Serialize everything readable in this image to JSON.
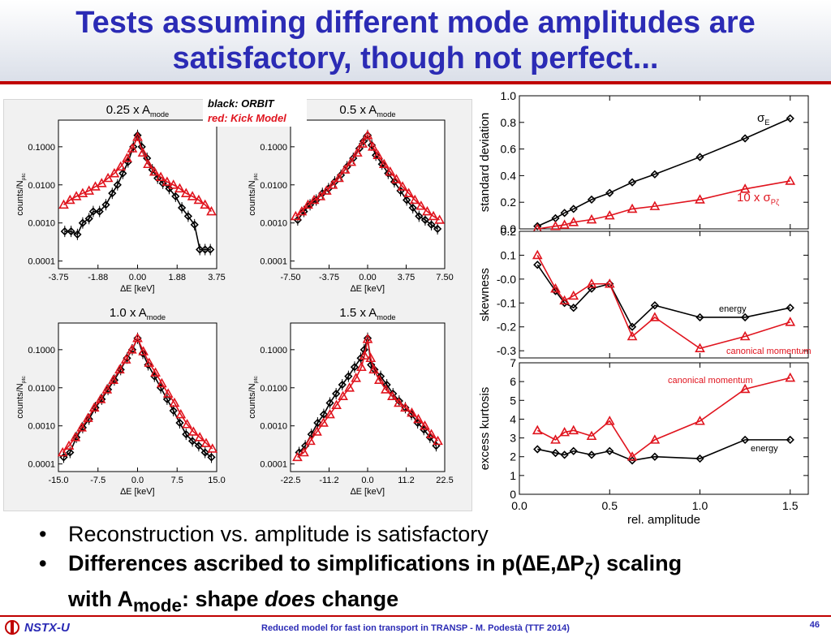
{
  "slide": {
    "title_line1": "Tests assuming different mode amplitudes are",
    "title_line2": "satisfactory, though not perfect...",
    "bullets": [
      "Reconstruction vs. amplitude is satisfactory",
      {
        "before": "Differences ascribed to simplifications in p(",
        "delta1": "∆",
        "e": "E,",
        "delta2": "∆",
        "p": "P",
        "zeta": "ζ",
        "after": ") scaling",
        "line2_a": "with A",
        "line2_sub": "mode",
        "line2_b": ": shape ",
        "line2_em": "does",
        "line2_c": " change"
      }
    ],
    "footer": "Reduced model for fast ion transport in TRANSP - M. Podestà (TTF 2014)",
    "page_number": "46",
    "logo_text": "NSTX-U"
  },
  "legend": {
    "black": "black: ORBIT",
    "red": "red: Kick Model"
  },
  "colors": {
    "title": "#2b2bb5",
    "accent": "#c00000",
    "orbit": "#000000",
    "kick": "#e0141e"
  },
  "chart_data": [
    {
      "type": "line",
      "title": "0.25 x A",
      "title_sub": "mode",
      "xlabel": "∆E [keV]",
      "ylabel": "counts/N",
      "ylabel_sub": "ptc",
      "xlim": [
        -3.75,
        3.75
      ],
      "ylim_log10": [
        -4.2,
        -0.3
      ],
      "yscale": "log",
      "xticks": [
        "-3.75",
        "-1.88",
        "0.00",
        "1.88",
        "3.75"
      ],
      "yticks": [
        {
          "v": 0.1,
          "label": "0.1000"
        },
        {
          "v": 0.01,
          "label": "0.0100"
        },
        {
          "v": 0.001,
          "label": "0.0010"
        },
        {
          "v": 0.0001,
          "label": "0.0001"
        }
      ],
      "series": [
        {
          "color": "#000000",
          "marker": "diamond",
          "x": [
            -3.45,
            -3.15,
            -2.85,
            -2.6,
            -2.3,
            -2.1,
            -1.8,
            -1.5,
            -1.2,
            -0.95,
            -0.7,
            -0.45,
            -0.2,
            0.0,
            0.2,
            0.45,
            0.7,
            0.95,
            1.2,
            1.5,
            1.8,
            2.1,
            2.4,
            2.7,
            2.95,
            3.2,
            3.45
          ],
          "y": [
            0.0006,
            0.0006,
            0.0005,
            0.001,
            0.0013,
            0.002,
            0.002,
            0.003,
            0.006,
            0.01,
            0.02,
            0.04,
            0.1,
            0.2,
            0.1,
            0.05,
            0.025,
            0.015,
            0.011,
            0.008,
            0.005,
            0.0025,
            0.0015,
            0.0009,
            0.0002,
            0.0002,
            0.0002
          ]
        },
        {
          "color": "#e0141e",
          "marker": "triangle",
          "x": [
            -3.5,
            -3.2,
            -2.9,
            -2.6,
            -2.3,
            -2.0,
            -1.7,
            -1.4,
            -1.1,
            -0.8,
            -0.5,
            -0.25,
            0.0,
            0.25,
            0.5,
            0.8,
            1.1,
            1.4,
            1.7,
            2.0,
            2.3,
            2.6,
            2.9,
            3.2,
            3.5
          ],
          "y": [
            0.003,
            0.004,
            0.005,
            0.006,
            0.007,
            0.009,
            0.011,
            0.015,
            0.02,
            0.03,
            0.05,
            0.09,
            0.18,
            0.07,
            0.035,
            0.022,
            0.016,
            0.012,
            0.01,
            0.008,
            0.006,
            0.005,
            0.004,
            0.003,
            0.002
          ]
        }
      ]
    },
    {
      "type": "line",
      "title": "0.5 x A",
      "title_sub": "mode",
      "xlabel": "∆E [keV]",
      "ylabel": "counts/N",
      "ylabel_sub": "ptc",
      "xlim": [
        -7.5,
        7.5
      ],
      "ylim_log10": [
        -4.2,
        -0.3
      ],
      "yscale": "log",
      "xticks": [
        "-7.50",
        "-3.75",
        "0.00",
        "3.75",
        "7.50"
      ],
      "yticks": [
        {
          "v": 0.1,
          "label": "0.1000"
        },
        {
          "v": 0.01,
          "label": "0.0100"
        },
        {
          "v": 0.001,
          "label": "0.0010"
        },
        {
          "v": 0.0001,
          "label": "0.0001"
        }
      ],
      "series": [
        {
          "color": "#000000",
          "marker": "diamond",
          "x": [
            -6.8,
            -6.2,
            -5.6,
            -5.0,
            -4.4,
            -3.8,
            -3.2,
            -2.6,
            -2.0,
            -1.4,
            -0.8,
            -0.4,
            0.0,
            0.4,
            0.8,
            1.4,
            2.0,
            2.6,
            3.2,
            3.8,
            4.4,
            5.0,
            5.6,
            6.2,
            6.8
          ],
          "y": [
            0.0012,
            0.002,
            0.003,
            0.004,
            0.006,
            0.008,
            0.012,
            0.018,
            0.03,
            0.05,
            0.09,
            0.14,
            0.2,
            0.11,
            0.06,
            0.035,
            0.02,
            0.012,
            0.007,
            0.004,
            0.0025,
            0.0015,
            0.0012,
            0.0009,
            0.0007
          ]
        },
        {
          "color": "#e0141e",
          "marker": "triangle",
          "x": [
            -7.0,
            -6.4,
            -5.8,
            -5.2,
            -4.6,
            -4.0,
            -3.4,
            -2.8,
            -2.2,
            -1.6,
            -1.0,
            -0.5,
            0.0,
            0.5,
            1.0,
            1.6,
            2.2,
            2.8,
            3.4,
            4.0,
            4.6,
            5.2,
            5.8,
            6.4,
            7.0
          ],
          "y": [
            0.0015,
            0.002,
            0.003,
            0.004,
            0.005,
            0.007,
            0.01,
            0.015,
            0.025,
            0.04,
            0.07,
            0.12,
            0.2,
            0.1,
            0.06,
            0.035,
            0.022,
            0.014,
            0.009,
            0.006,
            0.004,
            0.0028,
            0.002,
            0.0015,
            0.0012
          ]
        }
      ]
    },
    {
      "type": "line",
      "title": "1.0 x A",
      "title_sub": "mode",
      "xlabel": "∆E [keV]",
      "ylabel": "counts/N",
      "ylabel_sub": "ptc",
      "xlim": [
        -15.0,
        15.0
      ],
      "ylim_log10": [
        -4.2,
        -0.3
      ],
      "yscale": "log",
      "xticks": [
        "-15.0",
        "-7.5",
        "0.0",
        "7.5",
        "15.0"
      ],
      "yticks": [
        {
          "v": 0.1,
          "label": "0.1000"
        },
        {
          "v": 0.01,
          "label": "0.0100"
        },
        {
          "v": 0.001,
          "label": "0.0010"
        },
        {
          "v": 0.0001,
          "label": "0.0001"
        }
      ],
      "series": [
        {
          "color": "#000000",
          "marker": "diamond",
          "x": [
            -14.0,
            -12.8,
            -11.6,
            -10.4,
            -9.2,
            -8.0,
            -6.8,
            -5.6,
            -4.4,
            -3.2,
            -2.0,
            -1.0,
            0.0,
            1.0,
            2.0,
            3.2,
            4.4,
            5.6,
            6.8,
            8.0,
            9.2,
            10.4,
            11.6,
            12.8,
            14.0
          ],
          "y": [
            0.00015,
            0.0002,
            0.0005,
            0.0009,
            0.0015,
            0.003,
            0.005,
            0.009,
            0.016,
            0.03,
            0.06,
            0.1,
            0.2,
            0.08,
            0.04,
            0.02,
            0.01,
            0.005,
            0.0025,
            0.0012,
            0.0006,
            0.0004,
            0.0003,
            0.0002,
            0.00015
          ]
        },
        {
          "color": "#e0141e",
          "marker": "triangle",
          "x": [
            -14.2,
            -13.0,
            -11.8,
            -10.6,
            -9.4,
            -8.2,
            -7.0,
            -5.8,
            -4.6,
            -3.4,
            -2.2,
            -1.1,
            0.0,
            1.1,
            2.2,
            3.4,
            4.6,
            5.8,
            7.0,
            8.2,
            9.4,
            10.6,
            11.8,
            13.0,
            14.2
          ],
          "y": [
            0.0002,
            0.0003,
            0.0005,
            0.0009,
            0.0016,
            0.003,
            0.005,
            0.009,
            0.016,
            0.03,
            0.055,
            0.1,
            0.2,
            0.09,
            0.045,
            0.025,
            0.013,
            0.007,
            0.004,
            0.002,
            0.0011,
            0.0007,
            0.0005,
            0.00035,
            0.00025
          ]
        }
      ]
    },
    {
      "type": "line",
      "title": "1.5 x A",
      "title_sub": "mode",
      "xlabel": "∆E [keV]",
      "ylabel": "counts/N",
      "ylabel_sub": "ptc",
      "xlim": [
        -22.5,
        22.5
      ],
      "ylim_log10": [
        -4.2,
        -0.3
      ],
      "yscale": "log",
      "xticks": [
        "-22.5",
        "-11.2",
        "0.0",
        "11.2",
        "22.5"
      ],
      "yticks": [
        {
          "v": 0.1,
          "label": "0.1000"
        },
        {
          "v": 0.01,
          "label": "0.0100"
        },
        {
          "v": 0.001,
          "label": "0.0010"
        },
        {
          "v": 0.0001,
          "label": "0.0001"
        }
      ],
      "series": [
        {
          "color": "#000000",
          "marker": "diamond",
          "x": [
            -20.0,
            -18.2,
            -16.4,
            -14.6,
            -12.8,
            -11.0,
            -9.2,
            -7.4,
            -5.6,
            -3.8,
            -2.0,
            -1.0,
            0.0,
            1.0,
            2.0,
            3.8,
            5.6,
            7.4,
            9.2,
            11.0,
            12.8,
            14.6,
            16.4,
            18.2,
            20.0
          ],
          "y": [
            0.0002,
            0.0003,
            0.0006,
            0.0012,
            0.002,
            0.004,
            0.007,
            0.012,
            0.02,
            0.035,
            0.06,
            0.1,
            0.2,
            0.04,
            0.03,
            0.02,
            0.012,
            0.007,
            0.0045,
            0.003,
            0.002,
            0.0012,
            0.0008,
            0.0005,
            0.0003
          ]
        },
        {
          "color": "#e0141e",
          "marker": "triangle",
          "x": [
            -20.5,
            -18.6,
            -16.7,
            -14.8,
            -12.9,
            -11.0,
            -9.1,
            -7.2,
            -5.3,
            -3.4,
            -1.8,
            -0.9,
            0.0,
            0.9,
            1.8,
            3.4,
            5.3,
            7.2,
            9.1,
            11.0,
            12.9,
            14.8,
            16.7,
            18.6,
            20.5
          ],
          "y": [
            0.00015,
            0.0002,
            0.0004,
            0.0007,
            0.0012,
            0.002,
            0.0035,
            0.006,
            0.01,
            0.018,
            0.035,
            0.07,
            0.19,
            0.06,
            0.03,
            0.016,
            0.009,
            0.006,
            0.004,
            0.003,
            0.0022,
            0.0015,
            0.001,
            0.0006,
            0.0004
          ]
        }
      ]
    },
    {
      "type": "line",
      "ylabel": "standard deviation",
      "xlim": [
        0,
        1.6
      ],
      "ylim": [
        0,
        1.0
      ],
      "yticks": [
        "0.0",
        "0.2",
        "0.4",
        "0.6",
        "0.8",
        "1.0"
      ],
      "annotations": [
        {
          "text": "σ",
          "sub": "E",
          "color": "#000000"
        },
        {
          "text": "10 x σ",
          "sub": "Pζ",
          "color": "#e0141e"
        }
      ],
      "series": [
        {
          "color": "#000000",
          "marker": "diamond",
          "x": [
            0.1,
            0.2,
            0.25,
            0.3,
            0.4,
            0.5,
            0.625,
            0.75,
            1.0,
            1.25,
            1.5
          ],
          "y": [
            0.02,
            0.08,
            0.12,
            0.15,
            0.22,
            0.27,
            0.35,
            0.41,
            0.54,
            0.68,
            0.83
          ]
        },
        {
          "color": "#e0141e",
          "marker": "triangle",
          "x": [
            0.1,
            0.2,
            0.25,
            0.3,
            0.4,
            0.5,
            0.625,
            0.75,
            1.0,
            1.25,
            1.5
          ],
          "y": [
            0.0,
            0.02,
            0.03,
            0.05,
            0.07,
            0.1,
            0.15,
            0.17,
            0.22,
            0.3,
            0.36
          ]
        }
      ]
    },
    {
      "type": "line",
      "ylabel": "skewness",
      "xlim": [
        0,
        1.6
      ],
      "ylim": [
        -0.33,
        0.2
      ],
      "yticks": [
        "0.2",
        "0.1",
        "-0.0",
        "-0.1",
        "-0.2",
        "-0.3"
      ],
      "annotations": [
        {
          "text": "energy",
          "color": "#000000"
        },
        {
          "text": "canonical momentum",
          "color": "#e0141e"
        }
      ],
      "series": [
        {
          "color": "#000000",
          "marker": "diamond",
          "x": [
            0.1,
            0.2,
            0.25,
            0.3,
            0.4,
            0.5,
            0.625,
            0.75,
            1.0,
            1.25,
            1.5
          ],
          "y": [
            0.06,
            -0.05,
            -0.1,
            -0.12,
            -0.04,
            -0.02,
            -0.2,
            -0.11,
            -0.16,
            -0.16,
            -0.12
          ]
        },
        {
          "color": "#e0141e",
          "marker": "triangle",
          "x": [
            0.1,
            0.2,
            0.25,
            0.3,
            0.4,
            0.5,
            0.625,
            0.75,
            1.0,
            1.25,
            1.5
          ],
          "y": [
            0.1,
            -0.04,
            -0.09,
            -0.07,
            -0.02,
            -0.02,
            -0.24,
            -0.16,
            -0.29,
            -0.24,
            -0.18
          ]
        }
      ]
    },
    {
      "type": "line",
      "ylabel": "excess kurtosis",
      "xlabel": "rel. amplitude",
      "xlim": [
        0,
        1.6
      ],
      "ylim": [
        0,
        7
      ],
      "yticks": [
        "0",
        "1",
        "2",
        "3",
        "4",
        "5",
        "6",
        "7"
      ],
      "xticks": [
        "0.0",
        "0.5",
        "1.0",
        "1.5"
      ],
      "annotations": [
        {
          "text": "canonical momentum",
          "color": "#e0141e"
        },
        {
          "text": "energy",
          "color": "#000000"
        }
      ],
      "series": [
        {
          "color": "#000000",
          "marker": "diamond",
          "x": [
            0.1,
            0.2,
            0.25,
            0.3,
            0.4,
            0.5,
            0.625,
            0.75,
            1.0,
            1.25,
            1.5
          ],
          "y": [
            2.4,
            2.2,
            2.1,
            2.3,
            2.1,
            2.3,
            1.8,
            2.0,
            1.9,
            2.9,
            2.9
          ]
        },
        {
          "color": "#e0141e",
          "marker": "triangle",
          "x": [
            0.1,
            0.2,
            0.25,
            0.3,
            0.4,
            0.5,
            0.625,
            0.75,
            1.0,
            1.25,
            1.5
          ],
          "y": [
            3.4,
            2.9,
            3.3,
            3.4,
            3.1,
            3.9,
            2.0,
            2.9,
            3.9,
            5.6,
            6.2
          ]
        }
      ]
    }
  ]
}
